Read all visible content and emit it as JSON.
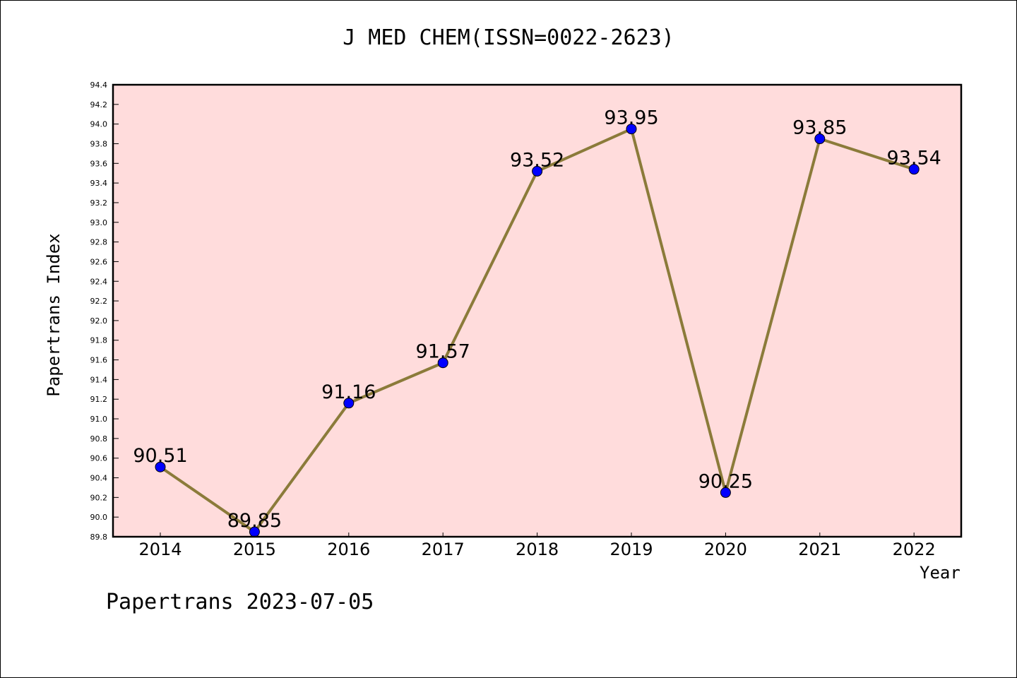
{
  "chart_data": {
    "type": "line",
    "title": "J MED CHEM(ISSN=0022-2623)",
    "xlabel": "Year",
    "ylabel": "Papertrans Index",
    "x": [
      "2014",
      "2015",
      "2016",
      "2017",
      "2018",
      "2019",
      "2020",
      "2021",
      "2022"
    ],
    "series": [
      {
        "values": [
          90.51,
          89.85,
          91.16,
          91.57,
          93.52,
          93.95,
          90.25,
          93.85,
          93.54
        ],
        "data_labels": [
          "90.51",
          "89.85",
          "91.16",
          "91.57",
          "93.52",
          "93.95",
          "90.25",
          "93.85",
          "93.54"
        ],
        "line_color": "#8b7b3a",
        "marker_color": "#0000ff"
      }
    ],
    "ylim": [
      89.8,
      94.4
    ],
    "yticks": [
      "89.8",
      "90.0",
      "90.2",
      "90.4",
      "90.6",
      "90.8",
      "91.0",
      "91.2",
      "91.4",
      "91.6",
      "91.8",
      "92.0",
      "92.2",
      "92.4",
      "92.6",
      "92.8",
      "93.0",
      "93.2",
      "93.4",
      "93.6",
      "93.8",
      "94.0",
      "94.2",
      "94.4"
    ],
    "grid": false,
    "plot_background": "#ffdcdc"
  },
  "footer": "Papertrans 2023-07-05"
}
